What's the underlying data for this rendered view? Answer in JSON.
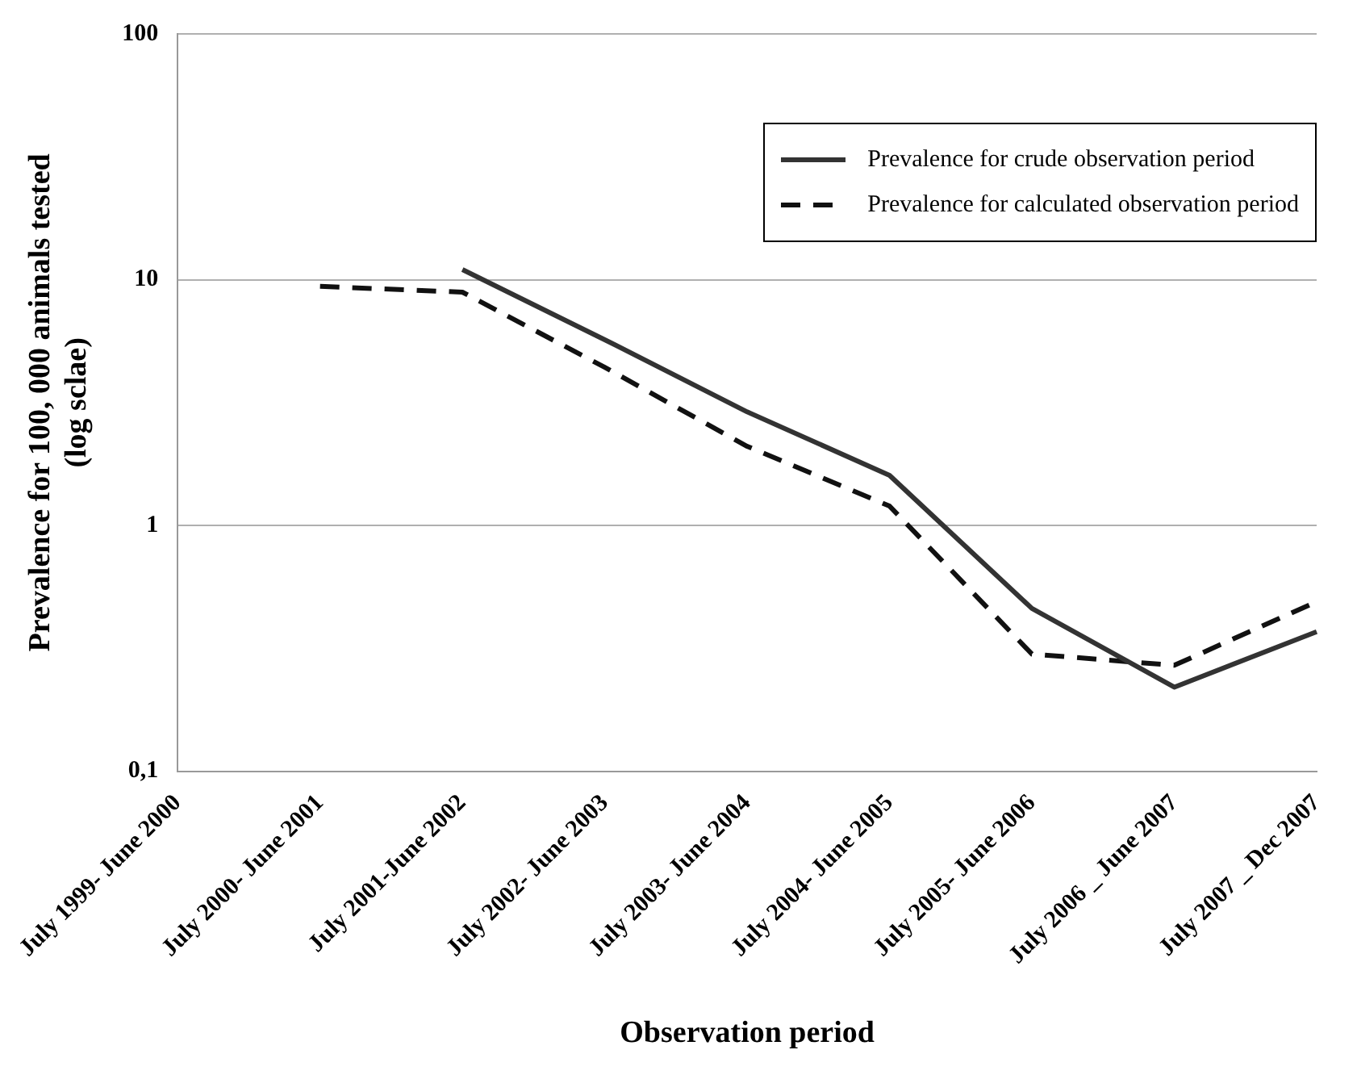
{
  "chart_data": {
    "type": "line",
    "xlabel": "Observation period",
    "ylabel": "Prevalence for 100, 000 animals tested (log sclae)",
    "categories": [
      "July 1999- June 2000",
      "July 2000- June 2001",
      "July 2001-June 2002",
      "July 2002- June 2003",
      "July 2003- June 2004",
      "July 2004- June 2005",
      "July 2005- June 2006",
      "July 2006 _ June 2007",
      "July 2007 _ Dec 2007"
    ],
    "series": [
      {
        "name": "Prevalence for crude observation period",
        "color": "#333333",
        "line_style": "solid",
        "values": [
          null,
          null,
          11,
          5.7,
          2.9,
          1.6,
          0.46,
          0.22,
          0.37
        ]
      },
      {
        "name": "Prevalence for calculated observation period",
        "color": "#111111",
        "line_style": "dashed",
        "values": [
          null,
          9.4,
          8.9,
          4.4,
          2.1,
          1.2,
          0.3,
          0.27,
          0.49
        ]
      }
    ],
    "log": true,
    "ylim": [
      0.1,
      100
    ],
    "yticks": [
      {
        "value": 0.1,
        "label": "0,1"
      },
      1,
      10,
      100
    ],
    "grid": "y",
    "legend": "top right",
    "marker": "none"
  }
}
